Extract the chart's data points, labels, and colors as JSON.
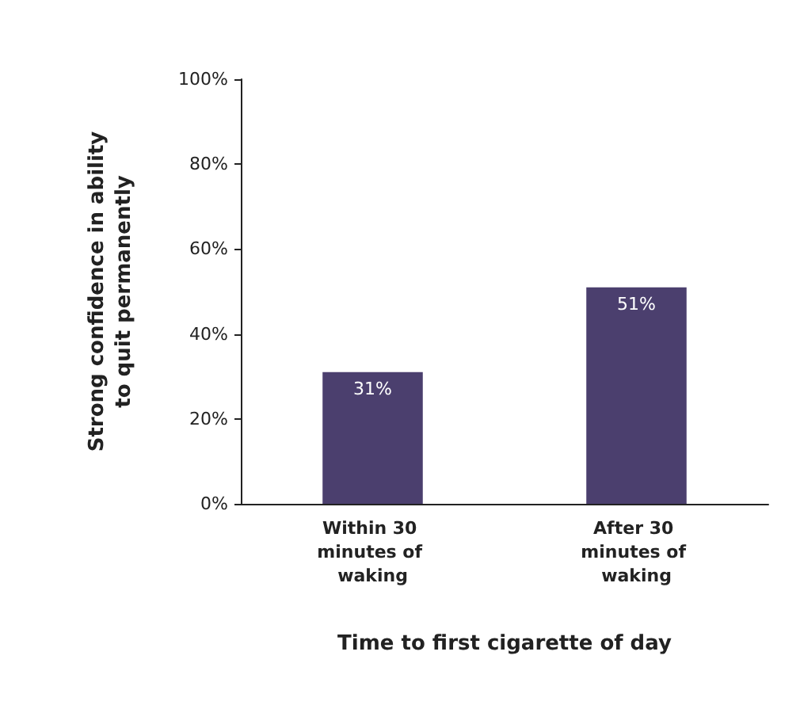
{
  "chart_data": {
    "type": "bar",
    "xlabel": "Time to first cigarette of day",
    "ylabel": "Strong confidence in ability to quit permanently",
    "categories": [
      "Within 30 minutes of waking",
      "After 30 minutes of waking"
    ],
    "values": [
      31,
      51
    ],
    "color": "#4b3f6e",
    "value_labels": [
      "31%",
      "51%"
    ],
    "ylim": [
      0,
      100
    ],
    "yticks": [
      {
        "value": 0,
        "label": "0%"
      },
      {
        "value": 20,
        "label": "20%"
      },
      {
        "value": 40,
        "label": "40%"
      },
      {
        "value": 60,
        "label": "60%"
      },
      {
        "value": 80,
        "label": "80%"
      },
      {
        "value": 100,
        "label": "100%"
      }
    ],
    "grid": false
  }
}
